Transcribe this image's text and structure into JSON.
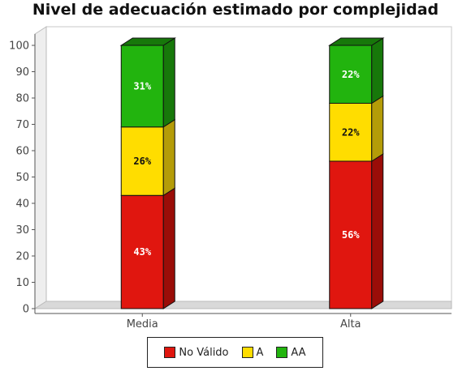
{
  "chart_data": {
    "type": "bar",
    "stacked": true,
    "three_d": true,
    "title": "Nivel de adecuación estimado por complejidad",
    "xlabel": "",
    "ylabel": "",
    "categories": [
      "Media",
      "Alta"
    ],
    "series": [
      {
        "name": "No Válido",
        "values": [
          43,
          56
        ],
        "labels": [
          "43%",
          "56%"
        ],
        "color": "#e0160f",
        "side_color": "#9a0d08",
        "label_color": "#ffffff"
      },
      {
        "name": "A",
        "values": [
          26,
          22
        ],
        "labels": [
          "26%",
          "22%"
        ],
        "color": "#ffdd00",
        "side_color": "#b49c08",
        "label_color": "#111111"
      },
      {
        "name": "AA",
        "values": [
          31,
          22
        ],
        "labels": [
          "31%",
          "22%"
        ],
        "color": "#22b40e",
        "side_color": "#17780a",
        "label_color": "#ffffff"
      }
    ],
    "ylim": [
      0,
      100
    ],
    "yticks": [
      0,
      10,
      20,
      30,
      40,
      50,
      60,
      70,
      80,
      90,
      100
    ],
    "grid": false,
    "legend_position": "bottom"
  }
}
